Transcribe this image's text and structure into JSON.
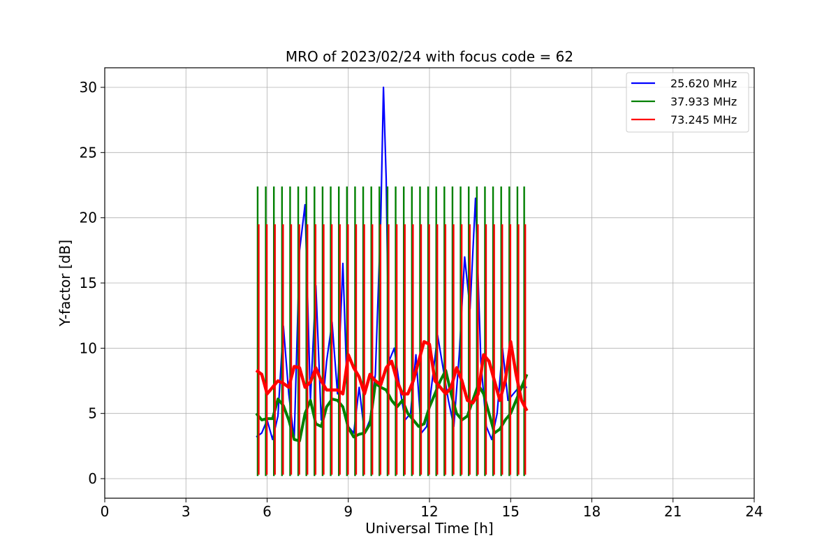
{
  "chart_data": {
    "type": "line",
    "title": "MRO of 2023/02/24 with focus code = 62",
    "xlabel": "Universal Time [h]",
    "ylabel": "Y-factor [dB]",
    "xlim": [
      0,
      24
    ],
    "ylim": [
      -1.5,
      31.5
    ],
    "xticks": [
      0,
      3,
      6,
      9,
      12,
      15,
      18,
      21,
      24
    ],
    "yticks": [
      0,
      5,
      10,
      15,
      20,
      25,
      30
    ],
    "grid": true,
    "legend_position": "top-right",
    "series": [
      {
        "name": "25.620 MHz",
        "color": "#0000ff",
        "x": [
          5.6,
          5.8,
          6.0,
          6.2,
          6.4,
          6.6,
          6.8,
          7.0,
          7.2,
          7.4,
          7.6,
          7.8,
          8.0,
          8.2,
          8.4,
          8.6,
          8.8,
          9.0,
          9.2,
          9.4,
          9.6,
          9.8,
          10.0,
          10.2,
          10.3,
          10.4,
          10.5,
          10.7,
          10.9,
          11.1,
          11.3,
          11.5,
          11.7,
          11.9,
          12.1,
          12.3,
          12.5,
          12.7,
          12.9,
          13.1,
          13.3,
          13.5,
          13.7,
          13.9,
          14.1,
          14.3,
          14.5,
          14.7,
          14.9,
          15.1,
          15.3,
          15.6
        ],
        "y": [
          3.2,
          3.5,
          4.5,
          3.0,
          4.8,
          11.7,
          6.5,
          3.0,
          17.5,
          21.0,
          6.0,
          14.8,
          4.5,
          9.0,
          12.0,
          6.5,
          16.5,
          4.0,
          3.5,
          7.0,
          3.5,
          4.5,
          8.0,
          20.0,
          30.0,
          23.0,
          9.0,
          10.0,
          7.0,
          4.5,
          5.0,
          9.5,
          3.5,
          4.0,
          7.5,
          11.0,
          8.5,
          6.0,
          4.0,
          9.5,
          17.0,
          13.0,
          21.5,
          9.0,
          4.0,
          3.0,
          5.0,
          10.0,
          6.0,
          6.5,
          7.0,
          7.0
        ]
      },
      {
        "name": "37.933 MHz",
        "color": "#008000",
        "x": [
          5.6,
          5.8,
          6.0,
          6.2,
          6.4,
          6.6,
          6.8,
          7.0,
          7.2,
          7.4,
          7.6,
          7.8,
          8.0,
          8.2,
          8.4,
          8.6,
          8.8,
          9.0,
          9.2,
          9.4,
          9.6,
          9.8,
          10.0,
          10.2,
          10.4,
          10.6,
          10.8,
          11.0,
          11.2,
          11.4,
          11.6,
          11.8,
          12.0,
          12.2,
          12.4,
          12.6,
          12.8,
          13.0,
          13.2,
          13.4,
          13.6,
          13.8,
          14.0,
          14.2,
          14.4,
          14.6,
          14.8,
          15.0,
          15.2,
          15.4,
          15.6
        ],
        "y": [
          5.0,
          4.5,
          4.6,
          4.6,
          6.1,
          5.6,
          4.5,
          3.0,
          2.9,
          5.0,
          6.0,
          4.2,
          4.0,
          5.5,
          6.1,
          6.0,
          5.5,
          3.9,
          3.2,
          3.4,
          3.5,
          4.2,
          7.3,
          7.0,
          6.8,
          6.0,
          5.5,
          6.0,
          5.0,
          4.5,
          4.0,
          4.2,
          5.5,
          6.5,
          7.5,
          8.3,
          6.5,
          5.0,
          4.5,
          4.8,
          6.0,
          7.2,
          6.5,
          5.0,
          3.5,
          3.8,
          4.5,
          5.0,
          6.0,
          7.0,
          8.0
        ]
      },
      {
        "name": "73.245 MHz",
        "color": "#ff0000",
        "x": [
          5.6,
          5.8,
          6.0,
          6.2,
          6.4,
          6.6,
          6.8,
          7.0,
          7.2,
          7.4,
          7.6,
          7.8,
          8.0,
          8.2,
          8.4,
          8.6,
          8.8,
          9.0,
          9.2,
          9.4,
          9.6,
          9.8,
          10.0,
          10.2,
          10.4,
          10.6,
          10.8,
          11.0,
          11.2,
          11.4,
          11.6,
          11.8,
          12.0,
          12.2,
          12.4,
          12.6,
          12.8,
          13.0,
          13.2,
          13.4,
          13.6,
          13.8,
          14.0,
          14.2,
          14.4,
          14.6,
          14.8,
          15.0,
          15.2,
          15.4,
          15.6
        ],
        "y": [
          8.3,
          8.0,
          6.5,
          7.0,
          7.5,
          7.3,
          7.0,
          8.6,
          8.5,
          7.0,
          7.4,
          8.5,
          7.5,
          6.8,
          6.8,
          6.8,
          6.5,
          9.5,
          8.5,
          7.8,
          6.5,
          8.0,
          7.5,
          7.2,
          8.5,
          9.0,
          7.5,
          6.5,
          6.5,
          7.5,
          9.0,
          10.5,
          10.3,
          7.5,
          7.0,
          6.5,
          7.0,
          8.5,
          7.5,
          6.0,
          5.8,
          6.5,
          9.5,
          9.0,
          7.5,
          6.0,
          7.5,
          10.5,
          8.0,
          6.0,
          5.2
        ]
      }
    ],
    "calibration_pulses": {
      "times": [
        5.65,
        5.95,
        6.25,
        6.55,
        6.85,
        7.15,
        7.45,
        7.75,
        8.05,
        8.35,
        8.65,
        8.95,
        9.25,
        9.55,
        9.85,
        10.15,
        10.45,
        10.75,
        11.05,
        11.35,
        11.65,
        11.95,
        12.25,
        12.55,
        12.85,
        13.15,
        13.45,
        13.75,
        14.05,
        14.35,
        14.65,
        14.95,
        15.25,
        15.5
      ],
      "green_peak": 22.4,
      "green_base": 0.2,
      "red_peak": 19.5,
      "red_base": 0.3
    }
  }
}
